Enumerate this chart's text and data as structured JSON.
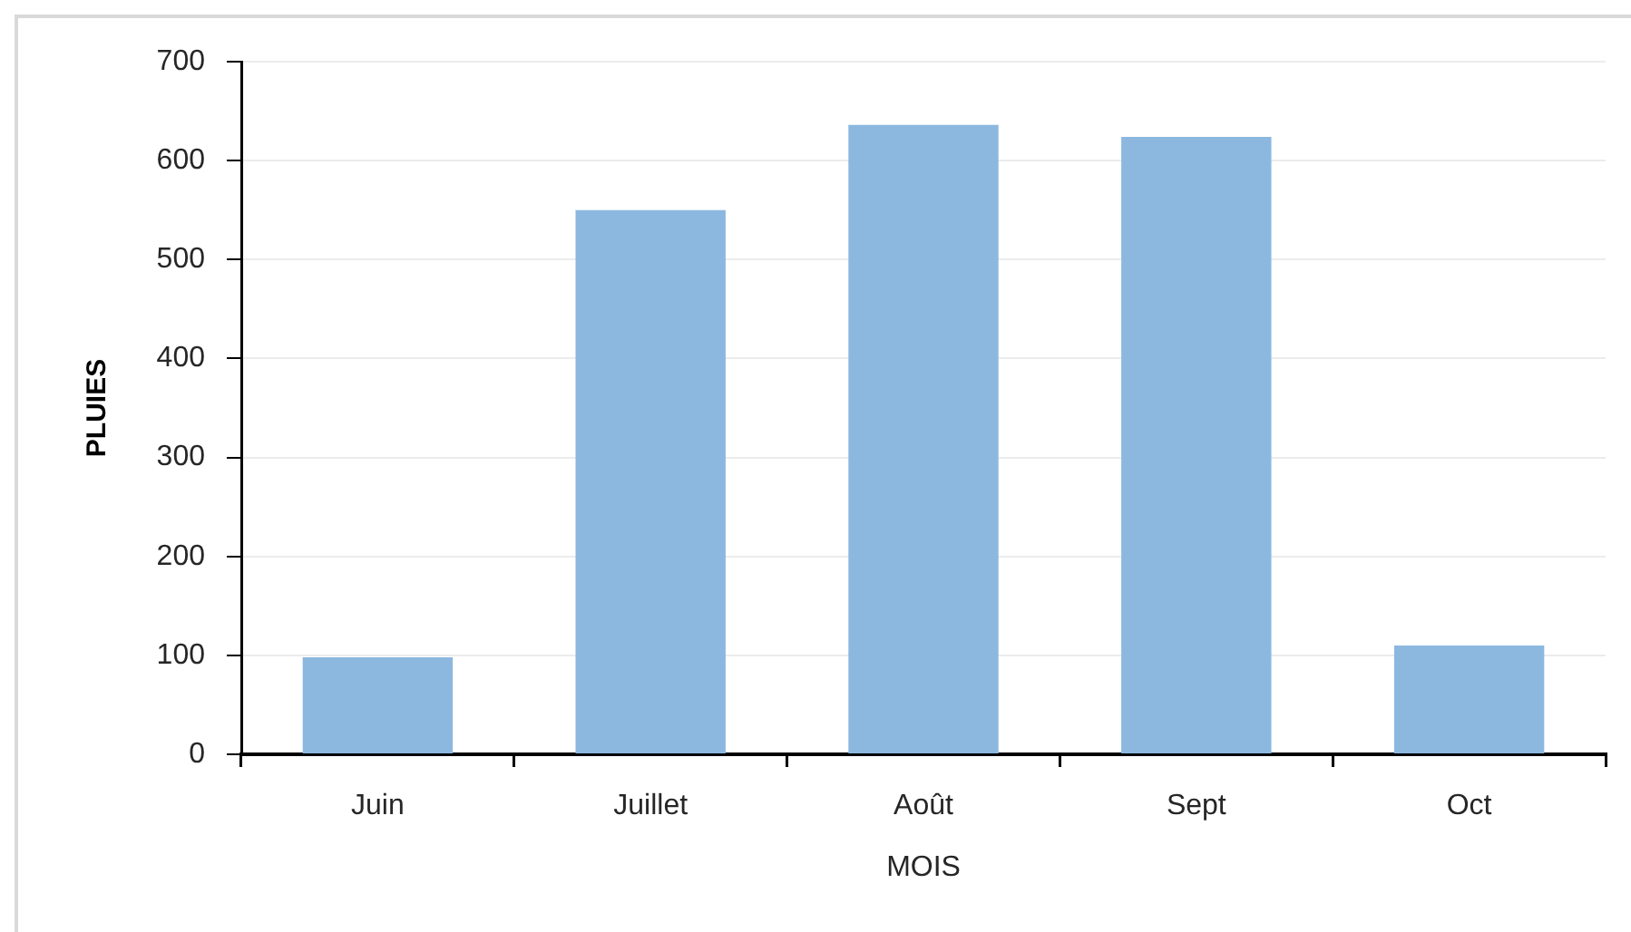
{
  "chart_data": {
    "type": "bar",
    "xlabel": "MOIS",
    "ylabel": "PLUIES",
    "categories": [
      "Juin",
      "Juillet",
      "Août",
      "Sept",
      "Oct"
    ],
    "values": [
      98,
      550,
      636,
      624,
      110
    ],
    "color": "#8cb8e0",
    "ylim": [
      0,
      700
    ],
    "yticks": [
      0,
      100,
      200,
      300,
      400,
      500,
      600,
      700
    ],
    "grid": "y"
  }
}
